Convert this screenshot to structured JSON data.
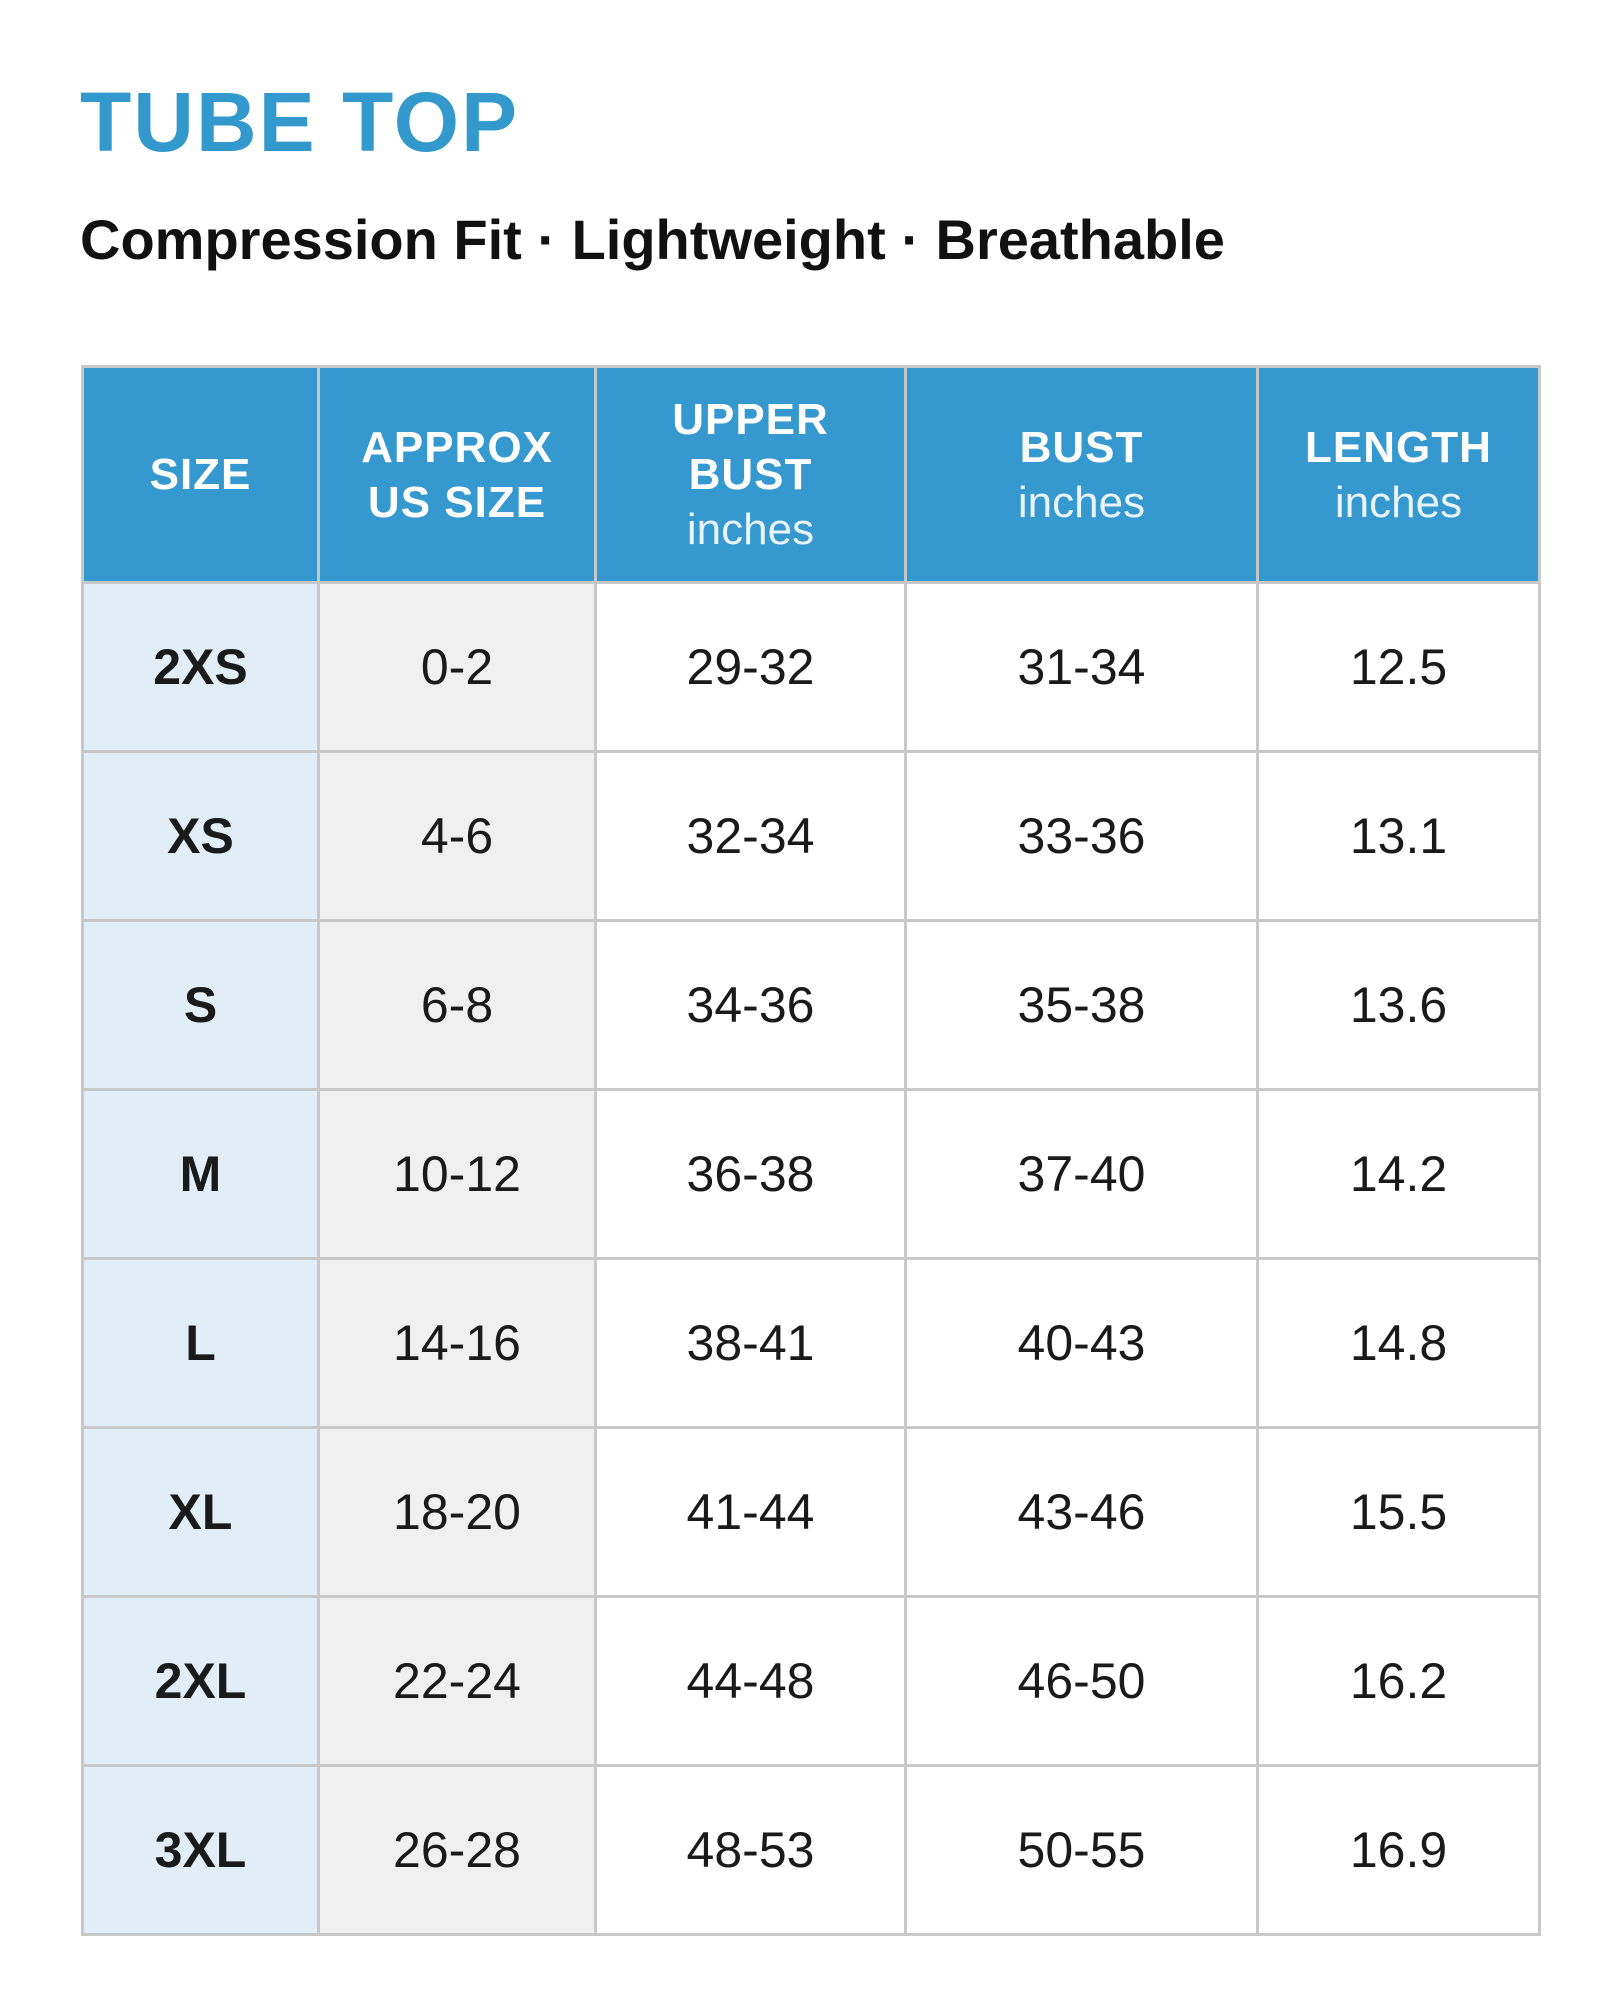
{
  "header": {
    "title": "TUBE TOP",
    "subtitle": "Compression Fit · Lightweight · Breathable"
  },
  "table": {
    "columns": [
      {
        "title": [
          "SIZE"
        ]
      },
      {
        "title": [
          "APPROX",
          "US SIZE"
        ]
      },
      {
        "title": [
          "UPPER",
          "BUST"
        ],
        "unit": "inches"
      },
      {
        "title": [
          "BUST"
        ],
        "unit": "inches"
      },
      {
        "title": [
          "LENGTH"
        ],
        "unit": "inches"
      }
    ],
    "rows": [
      [
        "2XS",
        "0-2",
        "29-32",
        "31-34",
        "12.5"
      ],
      [
        "XS",
        "4-6",
        "32-34",
        "33-36",
        "13.1"
      ],
      [
        "S",
        "6-8",
        "34-36",
        "35-38",
        "13.6"
      ],
      [
        "M",
        "10-12",
        "36-38",
        "37-40",
        "14.2"
      ],
      [
        "L",
        "14-16",
        "38-41",
        "40-43",
        "14.8"
      ],
      [
        "XL",
        "18-20",
        "41-44",
        "43-46",
        "15.5"
      ],
      [
        "2XL",
        "22-24",
        "44-48",
        "46-50",
        "16.2"
      ],
      [
        "3XL",
        "26-28",
        "48-53",
        "50-55",
        "16.9"
      ]
    ]
  }
}
